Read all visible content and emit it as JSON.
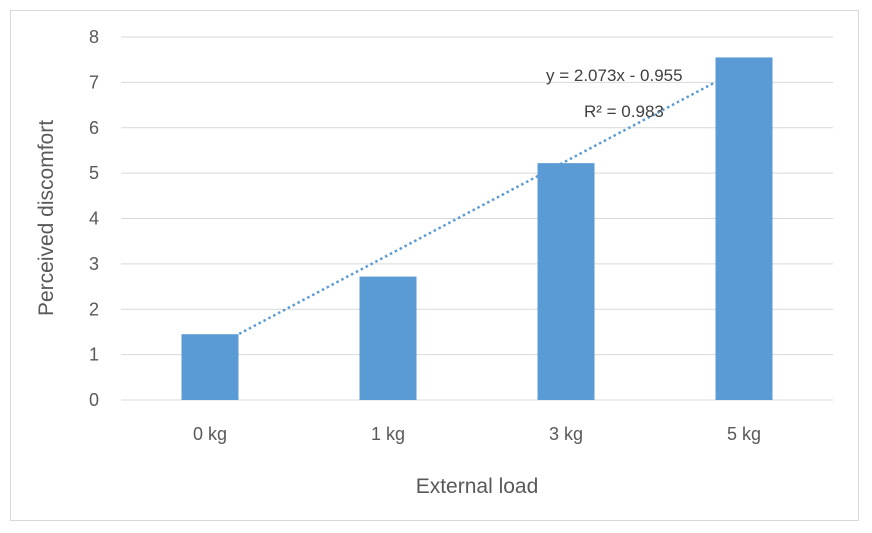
{
  "chart_data": {
    "type": "bar",
    "categories": [
      "0 kg",
      "1 kg",
      "3 kg",
      "5 kg"
    ],
    "series": [
      {
        "values": [
          1.45,
          2.72,
          5.22,
          7.55
        ]
      }
    ],
    "xlabel": "External load",
    "ylabel": "Perceived discomfort",
    "ylim": [
      0,
      8
    ],
    "yticks": [
      "0",
      "1",
      "2",
      "3",
      "4",
      "5",
      "6",
      "7",
      "8"
    ],
    "grid": true,
    "bar_color": "#5b9bd5",
    "trendline": {
      "type": "linear",
      "slope": 2.073,
      "intercept": -0.955,
      "equation": "y = 2.073x - 0.955",
      "r_squared": "R² = 0.983",
      "color": "#5b9bd5"
    }
  }
}
